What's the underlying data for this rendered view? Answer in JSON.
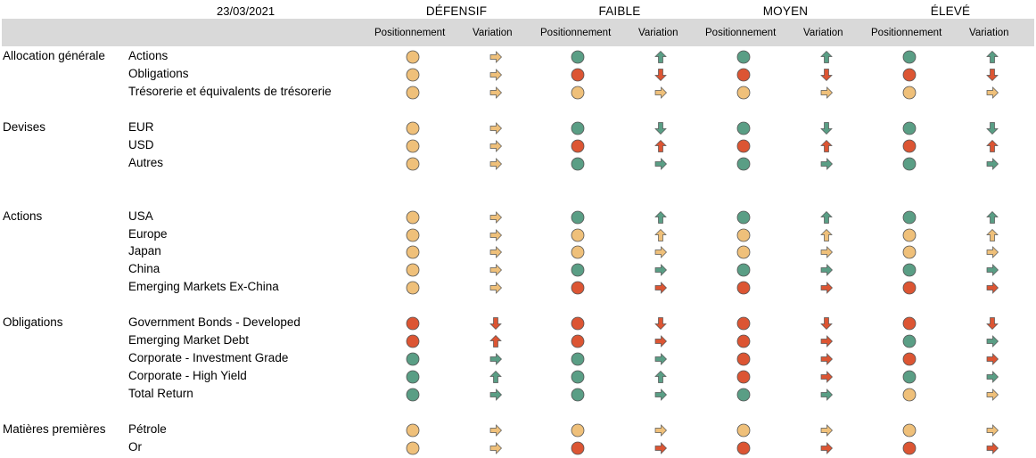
{
  "header": {
    "date": "23/03/2021",
    "profiles": [
      "DÉFENSIF",
      "FAIBLE",
      "MOYEN",
      "ÉLEVÉ"
    ],
    "subcolumns": [
      "Positionnement",
      "Variation"
    ]
  },
  "colors": {
    "positive": "#5a9e85",
    "neutral": "#efc07a",
    "negative": "#dc5533",
    "header_band": "#d9d9d9"
  },
  "rows": [
    {
      "category": "Allocation générale",
      "label": "Actions",
      "cells": [
        [
          "neutral",
          "right"
        ],
        [
          "positive",
          "up"
        ],
        [
          "positive",
          "up"
        ],
        [
          "positive",
          "up"
        ]
      ]
    },
    {
      "category": "",
      "label": "Obligations",
      "cells": [
        [
          "neutral",
          "right"
        ],
        [
          "negative",
          "down"
        ],
        [
          "negative",
          "down"
        ],
        [
          "negative",
          "down"
        ]
      ]
    },
    {
      "category": "",
      "label": "Trésorerie et équivalents de trésorerie",
      "cells": [
        [
          "neutral",
          "right"
        ],
        [
          "neutral",
          "right"
        ],
        [
          "neutral",
          "right"
        ],
        [
          "neutral",
          "right"
        ]
      ]
    },
    {
      "category": "Devises",
      "label": "EUR",
      "cells": [
        [
          "neutral",
          "right"
        ],
        [
          "positive",
          "down"
        ],
        [
          "positive",
          "down"
        ],
        [
          "positive",
          "down"
        ]
      ]
    },
    {
      "category": "",
      "label": "USD",
      "cells": [
        [
          "neutral",
          "right"
        ],
        [
          "negative",
          "up"
        ],
        [
          "negative",
          "up"
        ],
        [
          "negative",
          "up"
        ]
      ]
    },
    {
      "category": "",
      "label": "Autres",
      "cells": [
        [
          "neutral",
          "right"
        ],
        [
          "positive",
          "right"
        ],
        [
          "positive",
          "right"
        ],
        [
          "positive",
          "right"
        ]
      ]
    },
    {
      "category": "Actions",
      "label": "USA",
      "cells": [
        [
          "neutral",
          "right"
        ],
        [
          "positive",
          "up"
        ],
        [
          "positive",
          "up"
        ],
        [
          "positive",
          "up"
        ]
      ]
    },
    {
      "category": "",
      "label": "Europe",
      "cells": [
        [
          "neutral",
          "right"
        ],
        [
          "neutral",
          "up"
        ],
        [
          "neutral",
          "up"
        ],
        [
          "neutral",
          "up"
        ]
      ]
    },
    {
      "category": "",
      "label": "Japan",
      "cells": [
        [
          "neutral",
          "right"
        ],
        [
          "neutral",
          "right"
        ],
        [
          "neutral",
          "right"
        ],
        [
          "neutral",
          "right"
        ]
      ]
    },
    {
      "category": "",
      "label": "China",
      "cells": [
        [
          "neutral",
          "right"
        ],
        [
          "positive",
          "right"
        ],
        [
          "positive",
          "right"
        ],
        [
          "positive",
          "right"
        ]
      ]
    },
    {
      "category": "",
      "label": "Emerging Markets Ex-China",
      "cells": [
        [
          "neutral",
          "right"
        ],
        [
          "negative",
          "right"
        ],
        [
          "negative",
          "right"
        ],
        [
          "negative",
          "right"
        ]
      ]
    },
    {
      "category": "Obligations",
      "label": "Government Bonds - Developed",
      "cells": [
        [
          "negative",
          "down"
        ],
        [
          "negative",
          "down"
        ],
        [
          "negative",
          "down"
        ],
        [
          "negative",
          "down"
        ]
      ]
    },
    {
      "category": "",
      "label": "Emerging Market Debt",
      "cells": [
        [
          "negative",
          "up"
        ],
        [
          "negative",
          "right"
        ],
        [
          "negative",
          "right"
        ],
        [
          "positive",
          "right"
        ]
      ]
    },
    {
      "category": "",
      "label": "Corporate - Investment Grade",
      "cells": [
        [
          "positive",
          "right"
        ],
        [
          "positive",
          "right"
        ],
        [
          "negative",
          "right"
        ],
        [
          "negative",
          "right"
        ]
      ]
    },
    {
      "category": "",
      "label": "Corporate - High Yield",
      "cells": [
        [
          "positive",
          "up"
        ],
        [
          "positive",
          "up"
        ],
        [
          "negative",
          "right"
        ],
        [
          "positive",
          "right"
        ]
      ]
    },
    {
      "category": "",
      "label": "Total Return",
      "cells": [
        [
          "positive",
          "right"
        ],
        [
          "positive",
          "right"
        ],
        [
          "positive",
          "right"
        ],
        [
          "neutral",
          "right"
        ]
      ]
    },
    {
      "category": "Matières premières",
      "label": "Pétrole",
      "cells": [
        [
          "neutral",
          "right"
        ],
        [
          "neutral",
          "right"
        ],
        [
          "neutral",
          "right"
        ],
        [
          "neutral",
          "right"
        ]
      ]
    },
    {
      "category": "",
      "label": "Or",
      "cells": [
        [
          "neutral",
          "right"
        ],
        [
          "negative",
          "right"
        ],
        [
          "negative",
          "right"
        ],
        [
          "negative",
          "right"
        ]
      ]
    }
  ]
}
